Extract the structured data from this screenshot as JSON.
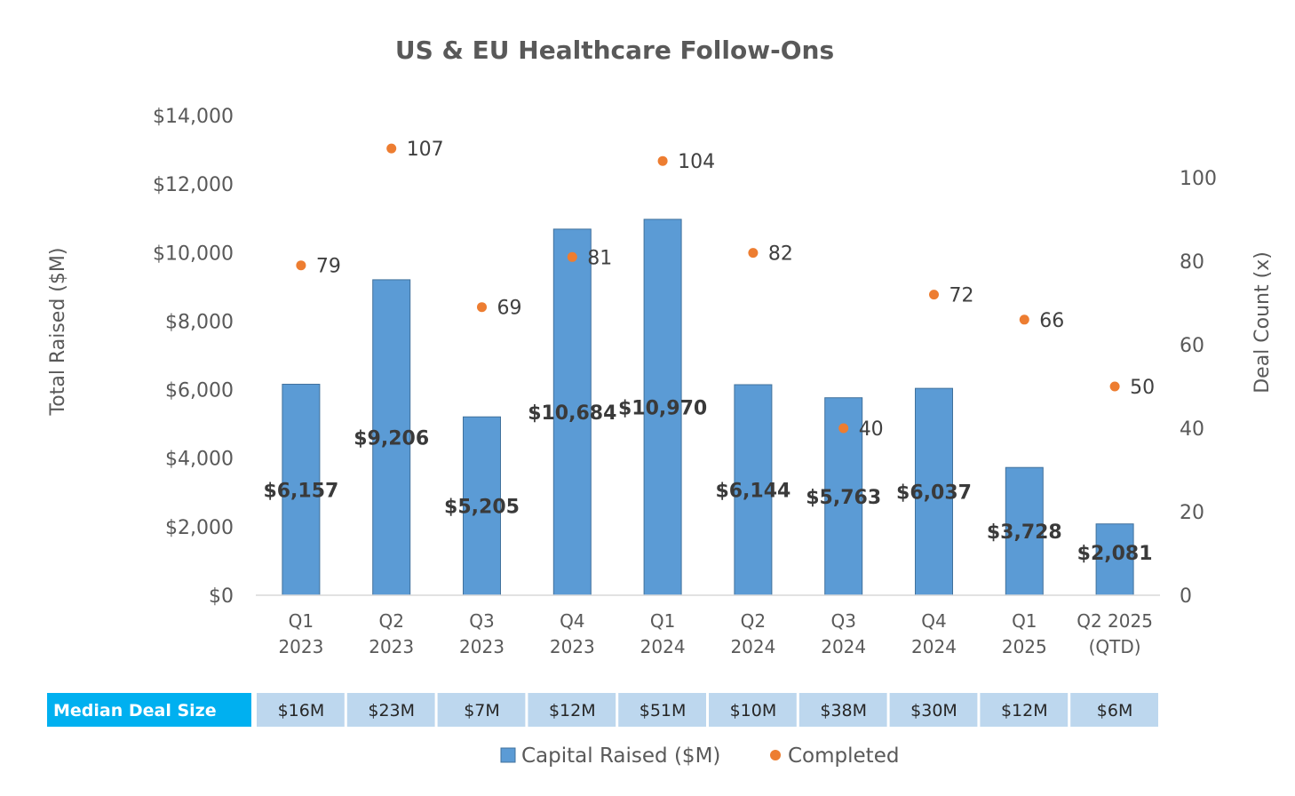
{
  "chart_data": {
    "type": "bar",
    "title": "US & EU Healthcare Follow-Ons",
    "categories": [
      [
        "Q1",
        "2023"
      ],
      [
        "Q2",
        "2023"
      ],
      [
        "Q3",
        "2023"
      ],
      [
        "Q4",
        "2023"
      ],
      [
        "Q1",
        "2024"
      ],
      [
        "Q2",
        "2024"
      ],
      [
        "Q3",
        "2024"
      ],
      [
        "Q4",
        "2024"
      ],
      [
        "Q1",
        "2025"
      ],
      [
        "Q2 2025",
        "(QTD)"
      ]
    ],
    "series": [
      {
        "name": "Capital Raised ($M)",
        "type": "bar",
        "axis": "left",
        "color": "#5b9bd5",
        "values": [
          6157,
          9206,
          5205,
          10684,
          10970,
          6144,
          5763,
          6037,
          3728,
          2081
        ],
        "labels": [
          "$6,157",
          "$9,206",
          "$5,205",
          "$10,684",
          "$10,970",
          "$6,144",
          "$5,763",
          "$6,037",
          "$3,728",
          "$2,081"
        ]
      },
      {
        "name": "Completed",
        "type": "scatter",
        "axis": "right",
        "color": "#ed7d31",
        "values": [
          79,
          107,
          69,
          81,
          104,
          82,
          40,
          72,
          66,
          50
        ]
      }
    ],
    "ylabel": "Total Raised ($M)",
    "y2label": "Deal Count (x)",
    "ylim": [
      0,
      14000
    ],
    "y2lim": [
      0,
      115
    ],
    "yticks": [
      "$0",
      "$2,000",
      "$4,000",
      "$6,000",
      "$8,000",
      "$10,000",
      "$12,000",
      "$14,000"
    ],
    "ytick_values": [
      0,
      2000,
      4000,
      6000,
      8000,
      10000,
      12000,
      14000
    ],
    "y2ticks": [
      "0",
      "20",
      "40",
      "60",
      "80",
      "100"
    ],
    "y2tick_values": [
      0,
      20,
      40,
      60,
      80,
      100
    ],
    "grid": false,
    "legend_position": "bottom"
  },
  "median_table": {
    "header": "Median Deal Size",
    "values": [
      "$16M",
      "$23M",
      "$7M",
      "$12M",
      "$51M",
      "$10M",
      "$38M",
      "$30M",
      "$12M",
      "$6M"
    ],
    "header_color": "#00b0f0",
    "cell_color": "#bdd7ee"
  }
}
